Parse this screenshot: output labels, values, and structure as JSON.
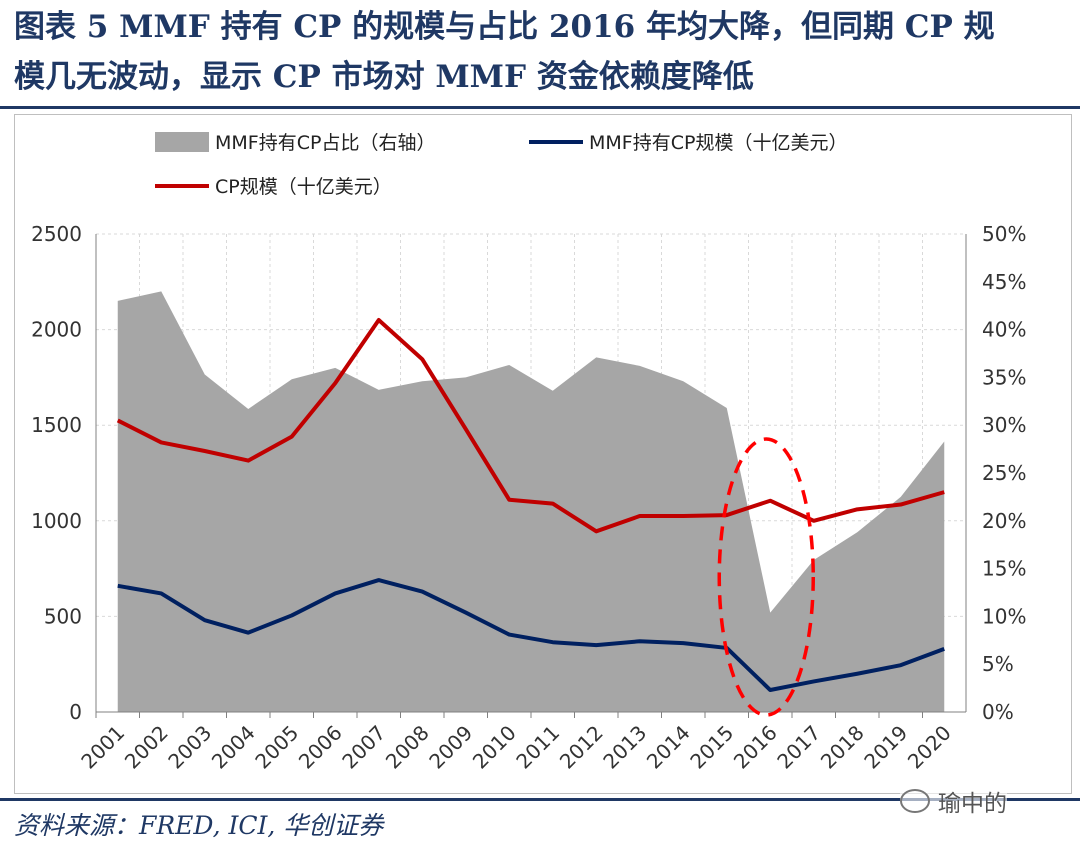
{
  "header": {
    "title_line1": "图表 5 MMF 持有 CP 的规模与占比 2016 年均大降，但同期 CP 规",
    "title_line2": "模几无波动，显示 CP 市场对 MMF 资金依赖度降低"
  },
  "footer": {
    "source": "资料来源：FRED, ICI, 华创证券",
    "watermark": "瑜中的"
  },
  "colors": {
    "area": "#a6a6a6",
    "holdings_line": "#002060",
    "cp_line": "#c00000",
    "highlight": "#ff0000",
    "grid": "#d9d9d9"
  },
  "chart_data": {
    "type": "area+line",
    "categories": [
      "2001",
      "2002",
      "2003",
      "2004",
      "2005",
      "2006",
      "2007",
      "2008",
      "2009",
      "2010",
      "2011",
      "2012",
      "2013",
      "2014",
      "2015",
      "2016",
      "2017",
      "2018",
      "2019",
      "2020"
    ],
    "y_left": {
      "min": 0,
      "max": 2500,
      "ticks": [
        "0",
        "500",
        "1000",
        "1500",
        "2000",
        "2500"
      ]
    },
    "y_right": {
      "min": 0,
      "max": 50,
      "ticks": [
        "0%",
        "5%",
        "10%",
        "15%",
        "20%",
        "25%",
        "30%",
        "35%",
        "40%",
        "45%",
        "50%"
      ]
    },
    "series": [
      {
        "name": "MMF持有CP占比（右轴）",
        "type": "area",
        "axis": "right",
        "values": [
          43,
          44,
          35.3,
          31.7,
          34.8,
          36,
          33.7,
          34.6,
          35,
          36.3,
          33.6,
          37.1,
          36.2,
          34.6,
          31.8,
          10.4,
          15.9,
          18.8,
          22.5,
          28.3
        ]
      },
      {
        "name": "MMF持有CP规模（十亿美元）",
        "type": "line",
        "axis": "left",
        "values": [
          660,
          620,
          480,
          415,
          505,
          620,
          690,
          630,
          520,
          405,
          365,
          350,
          370,
          360,
          335,
          115,
          160,
          200,
          245,
          330
        ]
      },
      {
        "name": "CP规模（十亿美元）",
        "type": "line",
        "axis": "left",
        "values": [
          1525,
          1410,
          1365,
          1315,
          1440,
          1720,
          2050,
          1845,
          1480,
          1110,
          1090,
          945,
          1025,
          1025,
          1030,
          1105,
          1000,
          1060,
          1085,
          1150
        ]
      }
    ],
    "annotations": [
      {
        "type": "dashed-ellipse",
        "category": "2016",
        "note": "highlight of 2016 drop"
      }
    ]
  }
}
